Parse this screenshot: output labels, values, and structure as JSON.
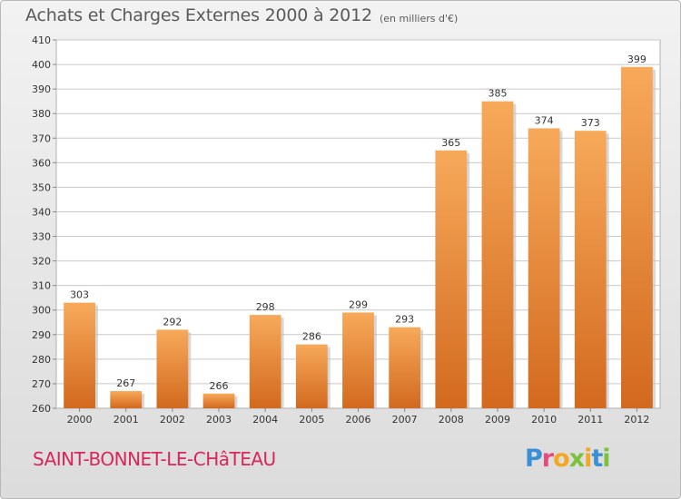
{
  "header": {
    "title": "Achats et Charges Externes 2000 à 2012",
    "subtitle": "(en milliers d'€)"
  },
  "footer": {
    "place_name": "SAINT-BONNET-LE-CHâTEAU",
    "brand_letters": [
      "P",
      "r",
      "o",
      "x",
      "i",
      "t",
      "i"
    ],
    "brand_colors": [
      "#3a8fd6",
      "#e84a7f",
      "#f5a623",
      "#7cc23a",
      "#f5a623",
      "#3a8fd6",
      "#7cc23a"
    ]
  },
  "colors": {
    "bar_light": "#f7a95a",
    "bar_dark": "#d2691e",
    "grid": "#c8c8c8",
    "text": "#333333",
    "accent": "#d8265c"
  },
  "chart_data": {
    "type": "bar",
    "title": "Achats et Charges Externes 2000 à 2012",
    "subtitle": "(en milliers d'€)",
    "xlabel": "",
    "ylabel": "",
    "categories": [
      "2000",
      "2001",
      "2002",
      "2003",
      "2004",
      "2005",
      "2006",
      "2007",
      "2008",
      "2009",
      "2010",
      "2011",
      "2012"
    ],
    "values": [
      303,
      267,
      292,
      266,
      298,
      286,
      299,
      293,
      365,
      385,
      374,
      373,
      399
    ],
    "ylim": [
      260,
      410
    ],
    "yticks": [
      260,
      270,
      280,
      290,
      300,
      310,
      320,
      330,
      340,
      350,
      360,
      370,
      380,
      390,
      400,
      410
    ],
    "grid": true,
    "data_labels": true
  }
}
